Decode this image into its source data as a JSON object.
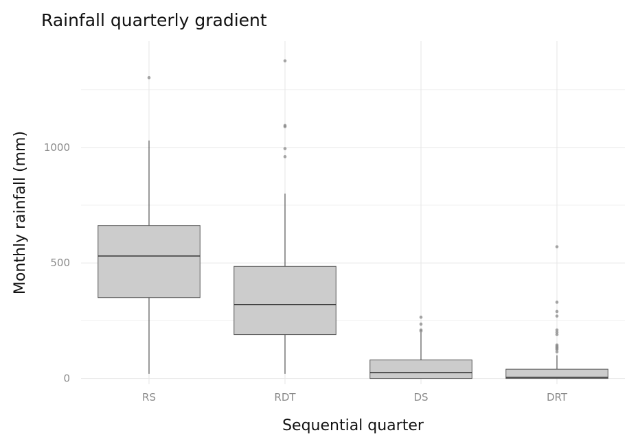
{
  "chart_data": {
    "type": "box",
    "title": "Rainfall quarterly gradient",
    "xlabel": "Sequential quarter",
    "ylabel": "Monthly rainfall (mm)",
    "ylim": [
      -25,
      1460
    ],
    "yticks": [
      0,
      500,
      1000
    ],
    "grid": true,
    "categories": [
      "RS",
      "RDT",
      "DS",
      "DRT"
    ],
    "boxes": [
      {
        "category": "RS",
        "whisker_low": 20,
        "q1": 350,
        "median": 530,
        "q3": 662,
        "whisker_high": 1030,
        "outliers": [
          1302
        ]
      },
      {
        "category": "RDT",
        "whisker_low": 20,
        "q1": 190,
        "median": 320,
        "q3": 485,
        "whisker_high": 800,
        "outliers": [
          960,
          995,
          1090,
          1095,
          1375
        ]
      },
      {
        "category": "DS",
        "whisker_low": 0,
        "q1": 0,
        "median": 25,
        "q3": 80,
        "whisker_high": 200,
        "outliers": [
          205,
          210,
          235,
          265
        ]
      },
      {
        "category": "DRT",
        "whisker_low": 0,
        "q1": 0,
        "median": 5,
        "q3": 40,
        "whisker_high": 100,
        "outliers": [
          115,
          125,
          130,
          135,
          140,
          145,
          190,
          200,
          210,
          270,
          290,
          330,
          570
        ]
      }
    ]
  }
}
